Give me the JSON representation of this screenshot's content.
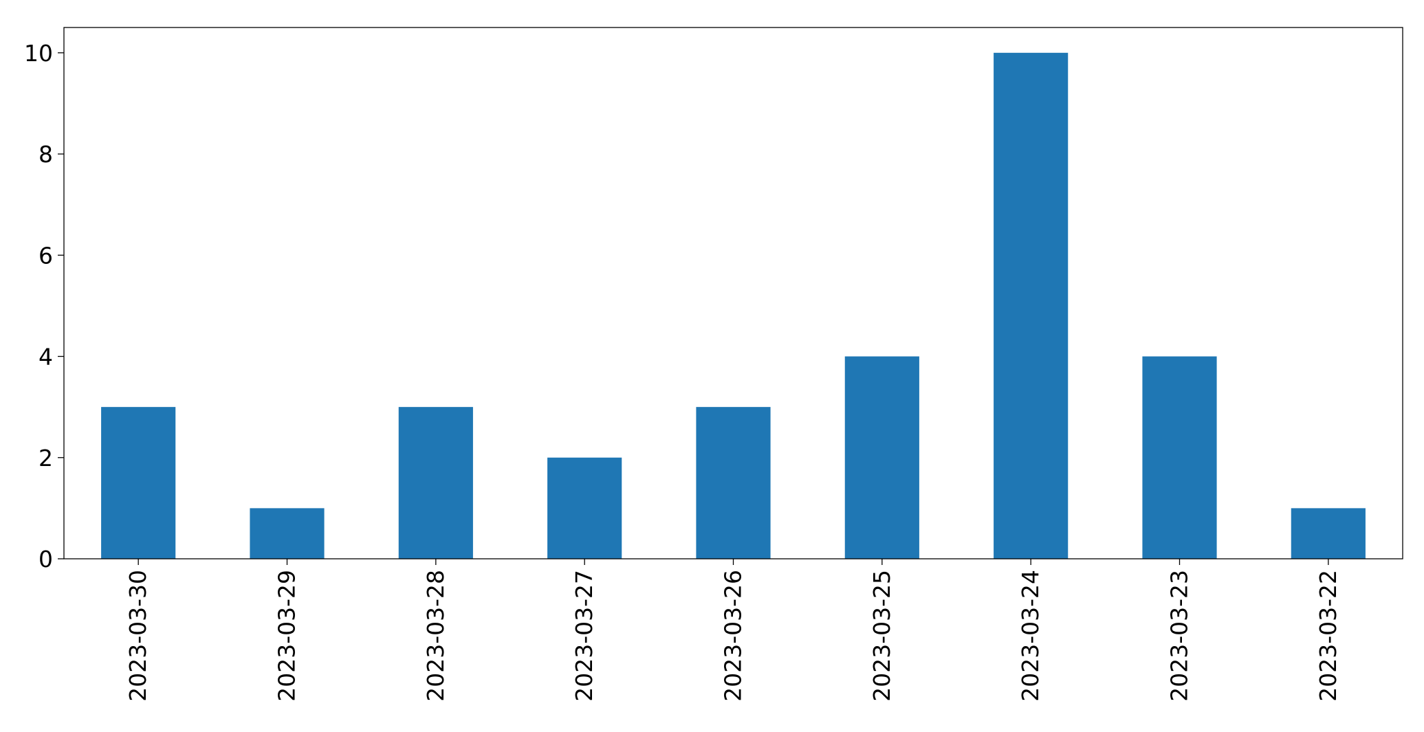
{
  "chart_data": {
    "type": "bar",
    "title": "",
    "xlabel": "",
    "ylabel": "",
    "categories": [
      "2023-03-30",
      "2023-03-29",
      "2023-03-28",
      "2023-03-27",
      "2023-03-26",
      "2023-03-25",
      "2023-03-24",
      "2023-03-23",
      "2023-03-22"
    ],
    "values": [
      3,
      1,
      3,
      2,
      3,
      4,
      10,
      4,
      1
    ],
    "ylim": [
      0,
      10.5
    ],
    "yticks": [
      0,
      2,
      4,
      6,
      8,
      10
    ],
    "bar_color": "#1f77b4",
    "grid": false,
    "legend": "none"
  }
}
